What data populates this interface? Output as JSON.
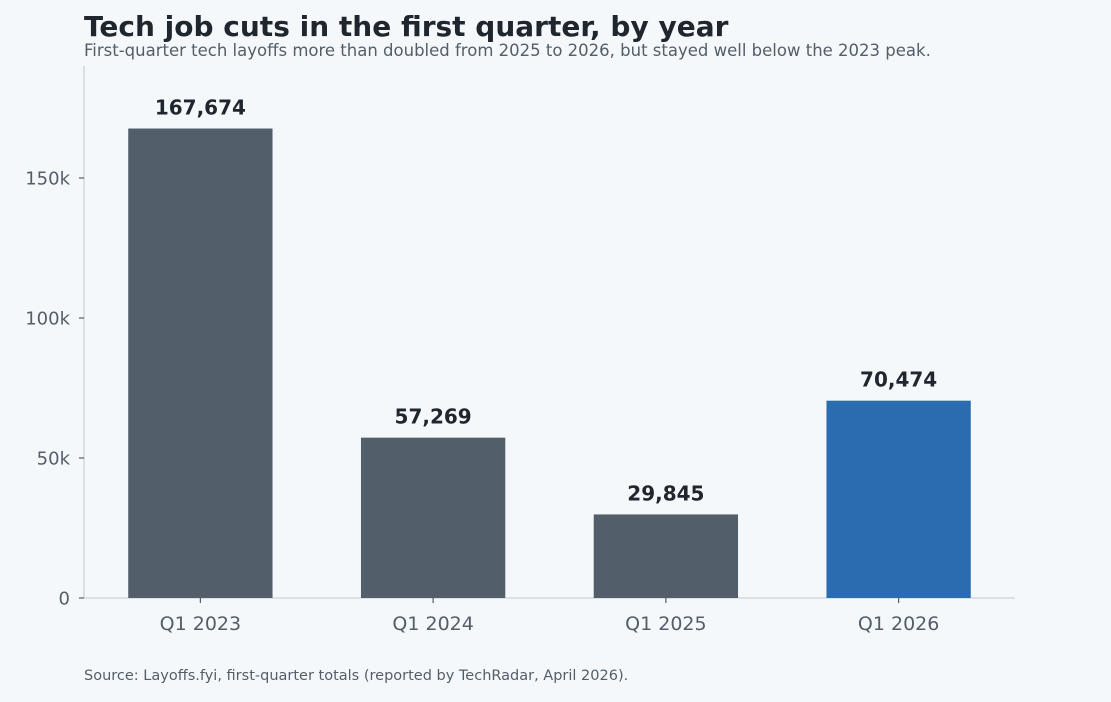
{
  "title": "Tech job cuts in the first quarter, by year",
  "subtitle": "First-quarter tech layoffs more than doubled from 2025 to 2026, but stayed well below the 2023 peak.",
  "source": "Source: Layoffs.fyi, first-quarter totals (reported by TechRadar, April 2026).",
  "colors": {
    "bar_default": "#525f6b",
    "bar_highlight": "#2b6cb0",
    "label": "#1f262d",
    "tick": "#535e68",
    "axis": "#c9d4dc"
  },
  "chart_data": {
    "type": "bar",
    "title": "Tech job cuts in the first quarter, by year",
    "subtitle": "First-quarter tech layoffs more than doubled from 2025 to 2026, but stayed well below the 2023 peak.",
    "categories": [
      "Q1 2023",
      "Q1 2024",
      "Q1 2025",
      "Q1 2026"
    ],
    "values": [
      167674,
      57269,
      29845,
      70474
    ],
    "value_labels": [
      "167,674",
      "57,269",
      "29,845",
      "70,474"
    ],
    "highlight_index": 3,
    "xlabel": "",
    "ylabel": "",
    "ylim": [
      0,
      190000
    ],
    "yticks": [
      0,
      50000,
      100000,
      150000
    ],
    "ytick_labels": [
      "0",
      "50k",
      "100k",
      "150k"
    ],
    "grid": false,
    "legend": false
  }
}
